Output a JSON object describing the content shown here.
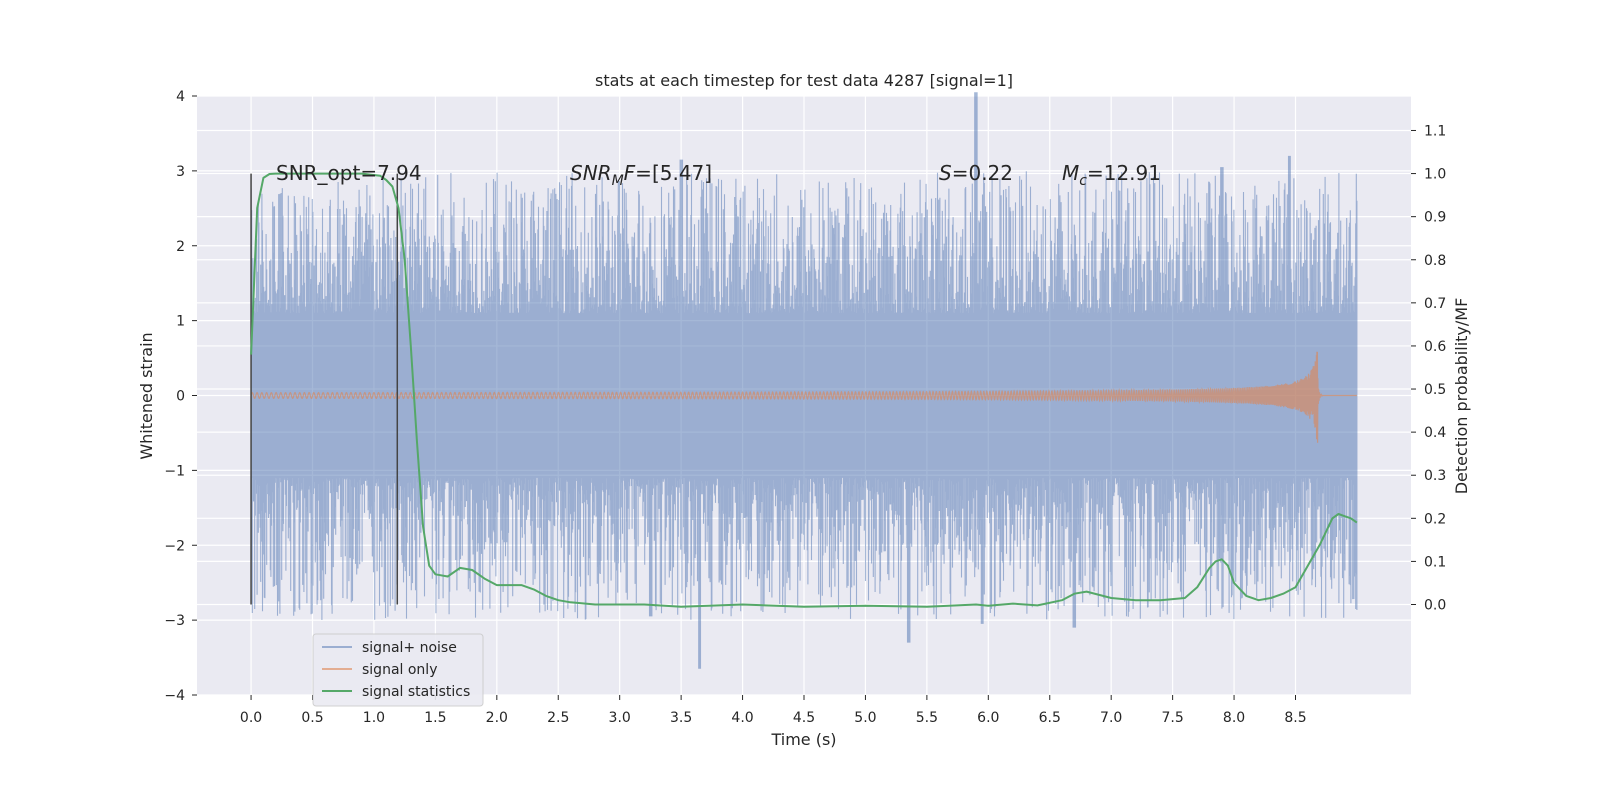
{
  "chart_data": {
    "type": "line",
    "title": "stats at each timestep for test data 4287 [signal=1]",
    "xlabel": "Time (s)",
    "ylabel": "Whitened strain",
    "y2label": "Detection probability/MF",
    "xlim": [
      -0.44,
      9.44
    ],
    "ylim": [
      -4.0,
      4.0
    ],
    "y2lim": [
      -0.21,
      1.18
    ],
    "x_ticks": [
      0.0,
      0.5,
      1.0,
      1.5,
      2.0,
      2.5,
      3.0,
      3.5,
      4.0,
      4.5,
      5.0,
      5.5,
      6.0,
      6.5,
      7.0,
      7.5,
      8.0,
      8.5
    ],
    "x_tick_labels": [
      "0.0",
      "0.5",
      "1.0",
      "1.5",
      "2.0",
      "2.5",
      "3.0",
      "3.5",
      "4.0",
      "4.5",
      "5.0",
      "5.5",
      "6.0",
      "6.5",
      "7.0",
      "7.5",
      "8.0",
      "8.5"
    ],
    "y_ticks": [
      4,
      3,
      2,
      1,
      0,
      -1,
      -2,
      -3,
      -4
    ],
    "y_tick_labels": [
      "4",
      "3",
      "2",
      "1",
      "0",
      "−1",
      "−2",
      "−3",
      "−4"
    ],
    "y2_ticks": [
      1.1,
      1.0,
      0.9,
      0.8,
      0.7,
      0.6,
      0.5,
      0.4,
      0.3,
      0.2,
      0.1,
      0.0
    ],
    "y2_tick_labels": [
      "1.1",
      "1.0",
      "0.9",
      "0.8",
      "0.7",
      "0.6",
      "0.5",
      "0.4",
      "0.3",
      "0.2",
      "0.1",
      "0.0"
    ],
    "grid": true,
    "legend_position": "lower-left",
    "legend": [
      "signal+ noise",
      "signal only",
      "signal statistics"
    ],
    "annotations": {
      "snr_opt": "SNR_opt=7.94",
      "snr_mf": "[5.47]",
      "s_value": "0.22",
      "mc_value": "12.91"
    },
    "vlines": [
      0.0,
      1.19
    ],
    "colors": {
      "noise": "#4c72b0",
      "signal": "#dd8452",
      "stats": "#55a868",
      "background": "#eaeaf2",
      "vline": "#444444"
    },
    "series": [
      {
        "name": "signal+ noise",
        "axis": "left",
        "description_type": "noise band",
        "x_range": [
          0.0,
          9.0
        ],
        "band_typical": [
          -1.4,
          1.4
        ],
        "peaks": [
          {
            "x": 5.9,
            "y": 4.05
          },
          {
            "x": 3.5,
            "y": 3.15
          },
          {
            "x": 7.9,
            "y": 3.05
          },
          {
            "x": 8.45,
            "y": 3.2
          },
          {
            "x": 3.65,
            "y": -3.65
          },
          {
            "x": 6.7,
            "y": -3.1
          },
          {
            "x": 5.35,
            "y": -3.3
          },
          {
            "x": 3.25,
            "y": -2.95
          },
          {
            "x": 5.95,
            "y": -3.05
          }
        ]
      },
      {
        "name": "signal only",
        "axis": "left",
        "description_type": "chirp",
        "t_merger": 8.68,
        "amplitude_at_merger": 1.3
      },
      {
        "name": "signal statistics",
        "axis": "right",
        "x": [
          0.0,
          0.05,
          0.1,
          0.15,
          0.2,
          0.3,
          0.5,
          0.7,
          0.9,
          1.05,
          1.1,
          1.15,
          1.2,
          1.25,
          1.3,
          1.35,
          1.4,
          1.45,
          1.5,
          1.6,
          1.7,
          1.8,
          1.9,
          2.0,
          2.1,
          2.2,
          2.3,
          2.4,
          2.5,
          2.6,
          2.8,
          3.0,
          3.2,
          3.5,
          4.0,
          4.5,
          5.0,
          5.5,
          5.9,
          6.0,
          6.2,
          6.4,
          6.6,
          6.7,
          6.8,
          7.0,
          7.2,
          7.4,
          7.6,
          7.7,
          7.8,
          7.85,
          7.9,
          7.95,
          8.0,
          8.1,
          8.2,
          8.3,
          8.4,
          8.5,
          8.6,
          8.7,
          8.8,
          8.85,
          8.9,
          8.95,
          9.0
        ],
        "values": [
          0.58,
          0.92,
          0.99,
          0.999,
          1.0,
          1.0,
          1.0,
          1.0,
          1.0,
          0.995,
          0.985,
          0.97,
          0.92,
          0.8,
          0.6,
          0.38,
          0.18,
          0.09,
          0.07,
          0.065,
          0.085,
          0.08,
          0.06,
          0.045,
          0.045,
          0.045,
          0.035,
          0.02,
          0.01,
          0.005,
          0.0,
          0.0,
          0.0,
          -0.005,
          0.0,
          -0.005,
          -0.003,
          -0.005,
          0.0,
          -0.003,
          0.002,
          -0.002,
          0.01,
          0.025,
          0.03,
          0.015,
          0.01,
          0.01,
          0.015,
          0.04,
          0.085,
          0.1,
          0.105,
          0.09,
          0.05,
          0.02,
          0.01,
          0.015,
          0.025,
          0.04,
          0.09,
          0.14,
          0.2,
          0.21,
          0.205,
          0.2,
          0.19
        ]
      }
    ]
  }
}
